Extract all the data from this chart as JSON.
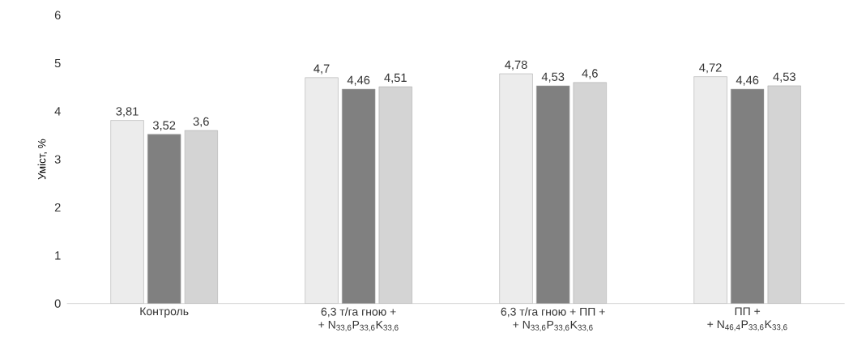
{
  "chart_data": {
    "type": "bar",
    "ylabel": "Уміст, %",
    "categories": [
      "Контроль",
      "6,3 т/га гною +\n+ N$_{33,6}$P$_{33,6}$K$_{33,6}$",
      "6,3 т/га гною + ПП +\n+ N$_{33,6}$P$_{33,6}$K$_{33,6}$",
      "ПП +\n+ N$_{46,4}$P$_{33,6}$K$_{33,6}$"
    ],
    "series": [
      {
        "color": "#ececec",
        "values": [
          3.81,
          4.7,
          4.78,
          4.72
        ],
        "value_labels": [
          "3,81",
          "4,7",
          "4,78",
          "4,72"
        ]
      },
      {
        "color": "#808080",
        "values": [
          3.52,
          4.46,
          4.53,
          4.46
        ],
        "value_labels": [
          "3,52",
          "4,46",
          "4,53",
          "4,46"
        ]
      },
      {
        "color": "#d4d4d4",
        "values": [
          3.6,
          4.51,
          4.6,
          4.53
        ],
        "value_labels": [
          "3,6",
          "4,51",
          "4,6",
          "4,53"
        ]
      }
    ],
    "ylim": [
      0,
      6
    ],
    "yticks": [
      0,
      1,
      2,
      3,
      4,
      5,
      6
    ]
  }
}
